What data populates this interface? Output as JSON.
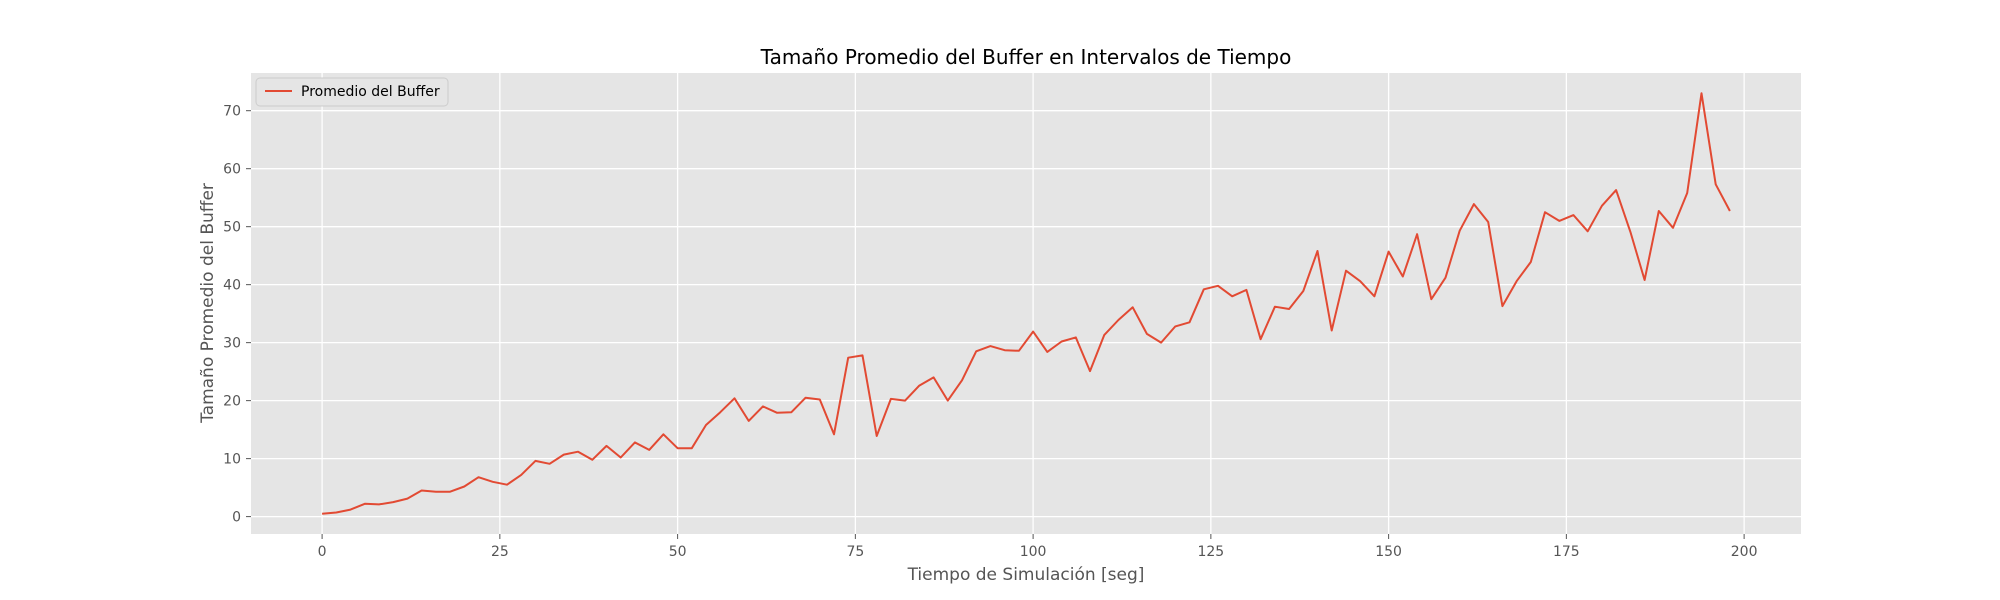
{
  "chart_data": {
    "type": "line",
    "title": "Tamaño Promedio del Buffer en Intervalos de Tiempo",
    "xlabel": "Tiempo de Simulación [seg]",
    "ylabel": "Tamaño Promedio del Buffer",
    "xlim": [
      -10,
      208
    ],
    "ylim": [
      -3,
      76.5
    ],
    "xticks": [
      0,
      25,
      50,
      75,
      100,
      125,
      150,
      175,
      200
    ],
    "yticks": [
      0,
      10,
      20,
      30,
      40,
      50,
      60,
      70
    ],
    "grid": true,
    "legend": "top-left",
    "series": [
      {
        "name": "Promedio del Buffer",
        "color": "#E24A33",
        "x": [
          0,
          2,
          4,
          6,
          8,
          10,
          12,
          14,
          16,
          18,
          20,
          22,
          24,
          26,
          28,
          30,
          32,
          34,
          36,
          38,
          40,
          42,
          44,
          46,
          48,
          50,
          52,
          54,
          56,
          58,
          60,
          62,
          64,
          66,
          68,
          70,
          72,
          74,
          76,
          78,
          80,
          82,
          84,
          86,
          88,
          90,
          92,
          94,
          96,
          98,
          100,
          102,
          104,
          106,
          108,
          110,
          112,
          114,
          116,
          118,
          120,
          122,
          124,
          126,
          128,
          130,
          132,
          134,
          136,
          138,
          140,
          142,
          144,
          146,
          148,
          150,
          152,
          154,
          156,
          158,
          160,
          162,
          164,
          166,
          168,
          170,
          172,
          174,
          176,
          178,
          180,
          182,
          184,
          186,
          188,
          190,
          192,
          194,
          196,
          198
        ],
        "y": [
          0.5,
          0.7,
          1.2,
          2.2,
          2.1,
          2.5,
          3.1,
          4.5,
          4.3,
          4.3,
          5.2,
          6.8,
          6.0,
          5.5,
          7.2,
          9.6,
          9.1,
          10.7,
          11.2,
          9.8,
          12.2,
          10.2,
          12.8,
          11.5,
          14.2,
          11.8,
          11.8,
          15.8,
          18.0,
          20.4,
          16.5,
          19.0,
          17.9,
          18.0,
          20.5,
          20.2,
          14.2,
          27.4,
          27.8,
          13.9,
          20.3,
          20.0,
          22.6,
          24.0,
          20.0,
          23.5,
          28.5,
          29.4,
          28.7,
          28.6,
          31.9,
          28.4,
          30.2,
          30.9,
          25.1,
          31.3,
          33.9,
          36.1,
          31.5,
          30.0,
          32.8,
          33.5,
          39.2,
          39.8,
          38.0,
          39.1,
          30.6,
          36.2,
          35.8,
          38.9,
          45.8,
          32.1,
          42.4,
          40.6,
          38.0,
          45.7,
          41.4,
          48.7,
          37.5,
          41.2,
          49.3,
          53.9,
          50.8,
          36.3,
          40.6,
          43.9,
          52.5,
          51.0,
          52.0,
          49.2,
          53.6,
          56.3,
          49.1,
          40.8,
          52.7,
          49.8,
          55.8,
          73.0,
          57.3,
          52.7
        ]
      }
    ]
  }
}
